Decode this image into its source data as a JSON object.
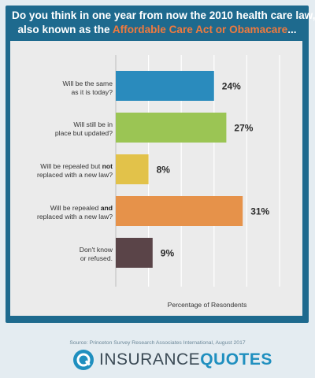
{
  "title": {
    "line1": "Do you think in one year from now the 2010 health care law,",
    "line2_prefix": "also known as the ",
    "line2_highlight": "Affordable Care Act or Obamacare",
    "line2_suffix": "..."
  },
  "colors": {
    "frame": "#1e6a8e",
    "highlight": "#f07a3e",
    "panel": "#ebebeb"
  },
  "chart_data": {
    "type": "bar",
    "orientation": "horizontal",
    "categories": [
      "Will be the same as it is today?",
      "Will still be in place but updated?",
      "Will be repealed but not replaced with a new law?",
      "Will be repealed and replaced with a new law?",
      "Don't know or refused."
    ],
    "values": [
      24,
      27,
      8,
      31,
      9
    ],
    "value_labels": [
      "24%",
      "27%",
      "8%",
      "31%",
      "9%"
    ],
    "bar_colors": [
      "#2a8bbd",
      "#9bc554",
      "#e2c24a",
      "#e6924a",
      "#5a4448"
    ],
    "xlabel": "Percentage of Resondents",
    "ylabel": "",
    "xlim": [
      0,
      40
    ],
    "grid": true
  },
  "labels": [
    {
      "a": "Will be the same",
      "b": "as it is today?"
    },
    {
      "a": "Will still be in",
      "b": "place but updated?"
    },
    {
      "a1": "Will be repealed but ",
      "ab": "not",
      "b": "replaced with a new law?"
    },
    {
      "a1": "Will be repealed ",
      "ab": "and",
      "b": "replaced with a new law?"
    },
    {
      "a": "Don't know",
      "b": "or refused."
    }
  ],
  "source": "Source: Princeton Survey Research Associates International, August 2017",
  "logo": {
    "part1": "INSURANCE",
    "part2": "QUOTES",
    "icon": "insurancequotes-logo-icon"
  }
}
